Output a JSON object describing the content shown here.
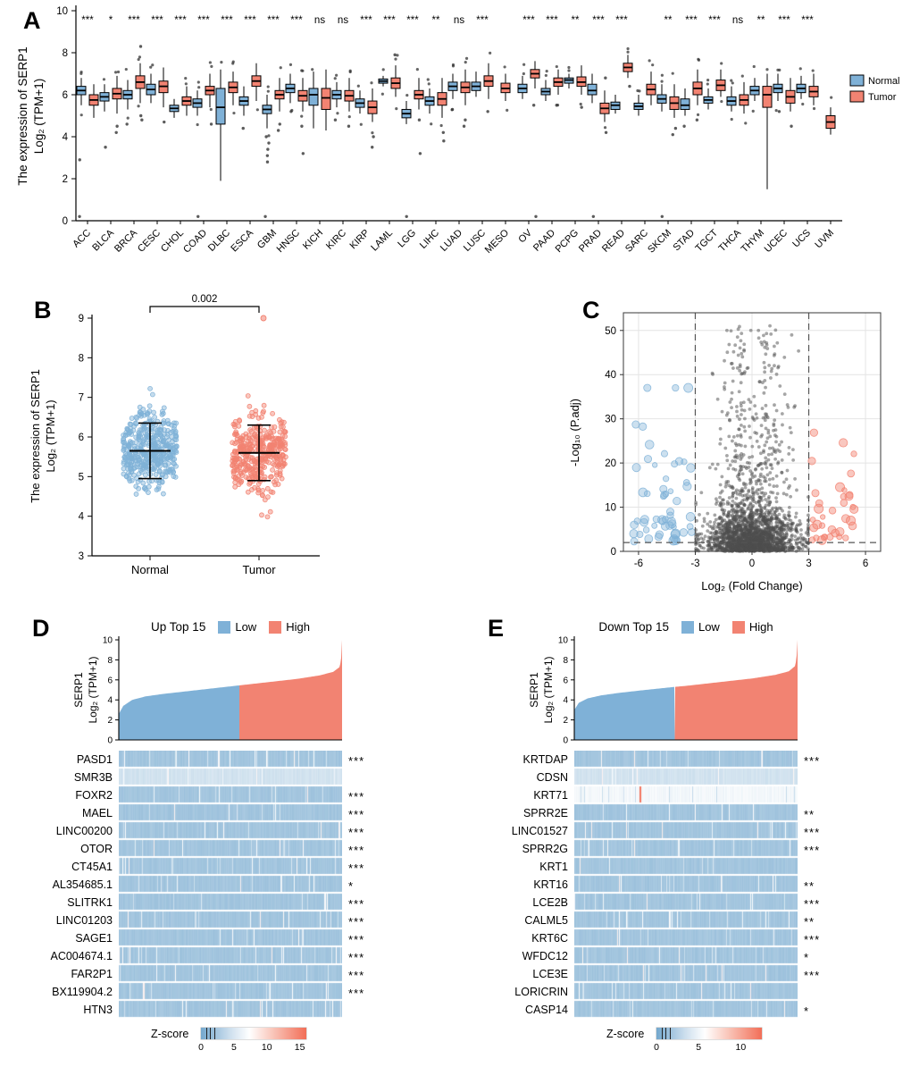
{
  "colors": {
    "normal": "#7FB1D7",
    "tumor": "#F28372",
    "heat_low": "#74A8CE",
    "heat_high": "#F26E57",
    "grey": "#4D4D4D"
  },
  "chart_data": {
    "panel_a": {
      "label": "A",
      "type": "box",
      "ylabel_line1": "The expression of SERP1",
      "ylabel_line2": "Log₂ (TPM+1)",
      "ylim": [
        0,
        10
      ],
      "yticks": [
        0,
        2,
        4,
        6,
        8,
        10
      ],
      "legend": [
        {
          "label": "Normal"
        },
        {
          "label": "Tumor"
        }
      ],
      "categories": [
        "ACC",
        "BLCA",
        "BRCA",
        "CESC",
        "CHOL",
        "COAD",
        "DLBC",
        "ESCA",
        "GBM",
        "HNSC",
        "KICH",
        "KIRC",
        "KIRP",
        "LAML",
        "LGG",
        "LIHC",
        "LUAD",
        "LUSC",
        "MESO",
        "OV",
        "PAAD",
        "PCPG",
        "PRAD",
        "READ",
        "SARC",
        "SKCM",
        "STAD",
        "TGCT",
        "THCA",
        "THYM",
        "UCEC",
        "UCS",
        "UVM"
      ],
      "significance": [
        "***",
        "*",
        "***",
        "***",
        "***",
        "***",
        "***",
        "***",
        "***",
        "***",
        "ns",
        "ns",
        "***",
        "***",
        "***",
        "**",
        "ns",
        "***",
        "",
        "***",
        "***",
        "**",
        "***",
        "***",
        "",
        "**",
        "***",
        "***",
        "ns",
        "**",
        "***",
        "***",
        ""
      ],
      "normal": [
        [
          5.5,
          6.0,
          6.2,
          6.4,
          6.8
        ],
        [
          5.2,
          5.7,
          5.9,
          6.1,
          6.5
        ],
        [
          5.3,
          5.8,
          6.0,
          6.2,
          6.7
        ],
        [
          5.6,
          6.0,
          6.25,
          6.5,
          7.0
        ],
        [
          4.9,
          5.2,
          5.35,
          5.5,
          5.8
        ],
        [
          5.0,
          5.4,
          5.6,
          5.8,
          6.2
        ],
        [
          1.9,
          4.6,
          5.4,
          6.3,
          7.2
        ],
        [
          5.0,
          5.5,
          5.7,
          5.9,
          6.4
        ],
        [
          4.4,
          5.1,
          5.3,
          5.5,
          6.0
        ],
        [
          5.6,
          6.1,
          6.3,
          6.5,
          7.0
        ],
        [
          4.4,
          5.5,
          6.0,
          6.3,
          7.1
        ],
        [
          5.4,
          5.8,
          6.0,
          6.2,
          6.6
        ],
        [
          5.1,
          5.4,
          5.6,
          5.8,
          6.2
        ],
        [
          6.4,
          6.55,
          6.65,
          6.75,
          6.9
        ],
        [
          4.6,
          4.9,
          5.1,
          5.3,
          5.7
        ],
        [
          5.1,
          5.5,
          5.7,
          5.9,
          6.3
        ],
        [
          5.8,
          6.2,
          6.4,
          6.6,
          7.0
        ],
        [
          5.9,
          6.2,
          6.4,
          6.6,
          7.1
        ],
        null,
        [
          5.8,
          6.1,
          6.3,
          6.5,
          6.9
        ],
        [
          5.7,
          6.0,
          6.15,
          6.3,
          6.7
        ],
        [
          6.3,
          6.55,
          6.7,
          6.8,
          7.0
        ],
        [
          5.6,
          6.0,
          6.2,
          6.5,
          7.0
        ],
        [
          5.1,
          5.3,
          5.5,
          5.65,
          6.0
        ],
        [
          5.0,
          5.3,
          5.45,
          5.6,
          6.0
        ],
        [
          5.2,
          5.6,
          5.8,
          6.0,
          6.5
        ],
        [
          5.0,
          5.3,
          5.5,
          5.8,
          6.3
        ],
        [
          5.3,
          5.6,
          5.75,
          5.9,
          6.3
        ],
        [
          5.2,
          5.5,
          5.7,
          5.9,
          6.4
        ],
        [
          5.7,
          6.0,
          6.2,
          6.4,
          6.8
        ],
        [
          5.7,
          6.1,
          6.3,
          6.5,
          7.0
        ],
        [
          5.8,
          6.1,
          6.3,
          6.5,
          6.9
        ],
        null
      ],
      "tumor": [
        [
          4.9,
          5.5,
          5.75,
          6.0,
          6.5
        ],
        [
          5.1,
          5.8,
          6.05,
          6.3,
          6.9
        ],
        [
          5.6,
          6.3,
          6.6,
          6.9,
          7.5
        ],
        [
          5.4,
          6.1,
          6.4,
          6.65,
          7.3
        ],
        [
          5.0,
          5.5,
          5.7,
          5.9,
          6.4
        ],
        [
          5.4,
          6.0,
          6.2,
          6.4,
          7.0
        ],
        [
          5.5,
          6.1,
          6.35,
          6.6,
          7.1
        ],
        [
          5.7,
          6.4,
          6.65,
          6.9,
          7.5
        ],
        [
          5.2,
          5.8,
          6.0,
          6.2,
          6.8
        ],
        [
          5.2,
          5.7,
          5.95,
          6.2,
          6.8
        ],
        [
          4.3,
          5.3,
          5.85,
          6.3,
          7.2
        ],
        [
          5.2,
          5.7,
          5.95,
          6.2,
          6.8
        ],
        [
          4.7,
          5.1,
          5.4,
          5.7,
          6.3
        ],
        [
          5.9,
          6.3,
          6.55,
          6.8,
          7.4
        ],
        [
          5.3,
          5.8,
          6.0,
          6.2,
          6.8
        ],
        [
          4.9,
          5.5,
          5.8,
          6.1,
          6.8
        ],
        [
          5.5,
          6.1,
          6.35,
          6.6,
          7.2
        ],
        [
          5.8,
          6.4,
          6.65,
          6.9,
          7.5
        ],
        [
          5.7,
          6.1,
          6.3,
          6.55,
          7.0
        ],
        [
          6.3,
          6.8,
          7.0,
          7.2,
          7.6
        ],
        [
          6.0,
          6.4,
          6.6,
          6.8,
          7.2
        ],
        [
          6.0,
          6.4,
          6.6,
          6.85,
          7.4
        ],
        [
          4.7,
          5.1,
          5.35,
          5.6,
          6.2
        ],
        [
          6.8,
          7.1,
          7.3,
          7.5,
          7.9
        ],
        [
          5.5,
          6.0,
          6.25,
          6.5,
          7.1
        ],
        [
          4.9,
          5.3,
          5.6,
          5.9,
          6.5
        ],
        [
          5.5,
          6.0,
          6.3,
          6.6,
          7.2
        ],
        [
          5.9,
          6.2,
          6.45,
          6.7,
          7.2
        ],
        [
          5.1,
          5.5,
          5.75,
          6.0,
          6.6
        ],
        [
          1.5,
          5.4,
          6.0,
          6.4,
          7.0
        ],
        [
          5.2,
          5.6,
          5.9,
          6.2,
          6.8
        ],
        [
          5.5,
          5.9,
          6.15,
          6.4,
          7.0
        ],
        [
          4.1,
          4.4,
          4.7,
          5.0,
          5.4
        ]
      ],
      "normal_outliers": [
        [
          0.2,
          2.9
        ],
        [
          3.5
        ],
        [
          4.6
        ],
        [],
        [],
        [
          0.2
        ],
        [],
        [
          4.4
        ],
        [
          0.2,
          2.8,
          3.1,
          3.4,
          3.7,
          4.0
        ],
        [
          5.2
        ],
        [],
        [
          4.8
        ],
        [],
        [],
        [
          0.2
        ],
        [],
        [
          5.3
        ],
        [],
        [],
        [],
        [],
        [],
        [
          0.2
        ],
        [],
        [],
        [
          0.2
        ],
        [
          4.5
        ],
        [],
        [],
        [],
        [
          5.2
        ],
        [],
        []
      ],
      "tumor_outliers": [
        [],
        [
          4.5,
          4.2
        ],
        [
          5.0,
          4.8,
          8.3
        ],
        [
          4.7
        ],
        [],
        [
          4.6
        ],
        [],
        [],
        [
          4.6,
          4.3
        ],
        [
          4.5,
          3.2
        ],
        [],
        [
          4.5
        ],
        [
          4.0,
          3.5
        ],
        [
          7.9
        ],
        [
          4.8,
          3.2
        ],
        [
          4.2,
          3.8
        ],
        [
          4.8,
          4.5
        ],
        [
          5.2
        ],
        [],
        [
          5.5,
          0.2
        ],
        [
          5.5
        ],
        [
          5.4
        ],
        [
          6.8,
          4.2
        ],
        [
          6.4
        ],
        [],
        [
          4.4,
          4.1
        ],
        [
          4.8
        ],
        [],
        [],
        [],
        [
          4.5
        ],
        [],
        []
      ]
    },
    "panel_b": {
      "label": "B",
      "type": "scatter",
      "ylabel_line1": "The expression of SERP1",
      "ylabel_line2": "Log₂ (TPM+1)",
      "ylim": [
        3,
        9
      ],
      "yticks": [
        3,
        4,
        5,
        6,
        7,
        8,
        9
      ],
      "pvalue": "0.002",
      "groups": [
        {
          "name": "Normal",
          "n": 420,
          "mean": 5.65,
          "sd": 0.46,
          "min": 4.0,
          "max": 7.45,
          "err_lo": 4.95,
          "err_hi": 6.35,
          "outliers": []
        },
        {
          "name": "Tumor",
          "n": 390,
          "mean": 5.6,
          "sd": 0.5,
          "min": 3.4,
          "max": 7.05,
          "err_lo": 4.9,
          "err_hi": 6.3,
          "outliers": [
            9.0
          ]
        }
      ]
    },
    "panel_c": {
      "label": "C",
      "type": "scatter",
      "xlabel": "Log₂ (Fold Change)",
      "ylabel": "-Log₁₀ (P.adj)",
      "xticks": [
        -6,
        -3,
        0,
        3,
        6
      ],
      "yticks": [
        0,
        10,
        20,
        30,
        40,
        50
      ],
      "fc_threshold": 3,
      "p_threshold": 2,
      "render": {
        "n_grey_low": 1300,
        "n_grey_mid": 650,
        "n_grey_tall": 240,
        "n_blue": 58,
        "n_red": 36,
        "seed": 23
      }
    },
    "panel_d": {
      "label": "D",
      "type": "heatmap",
      "title": "Up Top 15",
      "legend": [
        {
          "label": "Low"
        },
        {
          "label": "High"
        }
      ],
      "ylabel_line1": "SERP1",
      "ylabel_line2": "Log₂ (TPM+1)",
      "yticks": [
        0,
        2,
        4,
        6,
        8,
        10
      ],
      "curve": [
        [
          0,
          2.6
        ],
        [
          0.02,
          3.4
        ],
        [
          0.06,
          4.0
        ],
        [
          0.12,
          4.35
        ],
        [
          0.2,
          4.6
        ],
        [
          0.3,
          4.85
        ],
        [
          0.4,
          5.1
        ],
        [
          0.5,
          5.35
        ],
        [
          0.54,
          5.45
        ],
        [
          0.6,
          5.6
        ],
        [
          0.7,
          5.85
        ],
        [
          0.8,
          6.1
        ],
        [
          0.9,
          6.45
        ],
        [
          0.96,
          6.8
        ],
        [
          0.99,
          7.3
        ],
        [
          0.998,
          8.5
        ],
        [
          1,
          10
        ]
      ],
      "split": 0.54,
      "rows": [
        {
          "gene": "PASD1",
          "sig": "***",
          "shade": "normal"
        },
        {
          "gene": "SMR3B",
          "sig": "",
          "shade": "light"
        },
        {
          "gene": "FOXR2",
          "sig": "***",
          "shade": "normal"
        },
        {
          "gene": "MAEL",
          "sig": "***",
          "shade": "normal"
        },
        {
          "gene": "LINC00200",
          "sig": "***",
          "shade": "normal"
        },
        {
          "gene": "OTOR",
          "sig": "***",
          "shade": "normal"
        },
        {
          "gene": "CT45A1",
          "sig": "***",
          "shade": "normal"
        },
        {
          "gene": "AL354685.1",
          "sig": "*",
          "shade": "normal"
        },
        {
          "gene": "SLITRK1",
          "sig": "***",
          "shade": "normal"
        },
        {
          "gene": "LINC01203",
          "sig": "***",
          "shade": "normal"
        },
        {
          "gene": "SAGE1",
          "sig": "***",
          "shade": "normal"
        },
        {
          "gene": "AC004674.1",
          "sig": "***",
          "shade": "normal"
        },
        {
          "gene": "FAR2P1",
          "sig": "***",
          "shade": "normal"
        },
        {
          "gene": "BX119904.2",
          "sig": "***",
          "shade": "normal"
        },
        {
          "gene": "HTN3",
          "sig": "",
          "shade": "normal"
        }
      ],
      "zscore_label": "Z-score",
      "zscore_ticks": [
        0,
        5,
        10,
        15
      ],
      "zscore_max": 16,
      "seed": 5
    },
    "panel_e": {
      "label": "E",
      "type": "heatmap",
      "title": "Down Top 15",
      "legend": [
        {
          "label": "Low"
        },
        {
          "label": "High"
        }
      ],
      "ylabel_line1": "SERP1",
      "ylabel_line2": "Log₂ (TPM+1)",
      "yticks": [
        0,
        2,
        4,
        6,
        8,
        10
      ],
      "curve": [
        [
          0,
          3.0
        ],
        [
          0.02,
          3.7
        ],
        [
          0.06,
          4.15
        ],
        [
          0.12,
          4.45
        ],
        [
          0.2,
          4.7
        ],
        [
          0.3,
          4.95
        ],
        [
          0.45,
          5.3
        ],
        [
          0.5,
          5.4
        ],
        [
          0.6,
          5.65
        ],
        [
          0.7,
          5.9
        ],
        [
          0.8,
          6.15
        ],
        [
          0.9,
          6.5
        ],
        [
          0.96,
          6.85
        ],
        [
          0.99,
          7.4
        ],
        [
          0.998,
          8.8
        ],
        [
          1,
          10
        ]
      ],
      "split": 0.45,
      "rows": [
        {
          "gene": "KRTDAP",
          "sig": "***",
          "shade": "normal"
        },
        {
          "gene": "CDSN",
          "sig": "",
          "shade": "light"
        },
        {
          "gene": "KRT71",
          "sig": "",
          "shade": "verylight",
          "red_strips": [
            0.29
          ]
        },
        {
          "gene": "SPRR2E",
          "sig": "**",
          "shade": "normal"
        },
        {
          "gene": "LINC01527",
          "sig": "***",
          "shade": "normal"
        },
        {
          "gene": "SPRR2G",
          "sig": "***",
          "shade": "normal"
        },
        {
          "gene": "KRT1",
          "sig": "",
          "shade": "normal"
        },
        {
          "gene": "KRT16",
          "sig": "**",
          "shade": "normal"
        },
        {
          "gene": "LCE2B",
          "sig": "***",
          "shade": "normal"
        },
        {
          "gene": "CALML5",
          "sig": "**",
          "shade": "normal"
        },
        {
          "gene": "KRT6C",
          "sig": "***",
          "shade": "normal"
        },
        {
          "gene": "WFDC12",
          "sig": "*",
          "shade": "normal"
        },
        {
          "gene": "LCE3E",
          "sig": "***",
          "shade": "normal"
        },
        {
          "gene": "LORICRIN",
          "sig": "",
          "shade": "normal"
        },
        {
          "gene": "CASP14",
          "sig": "*",
          "shade": "normal"
        }
      ],
      "zscore_label": "Z-score",
      "zscore_ticks": [
        0,
        5,
        10
      ],
      "zscore_max": 12.5,
      "seed": 9
    }
  }
}
